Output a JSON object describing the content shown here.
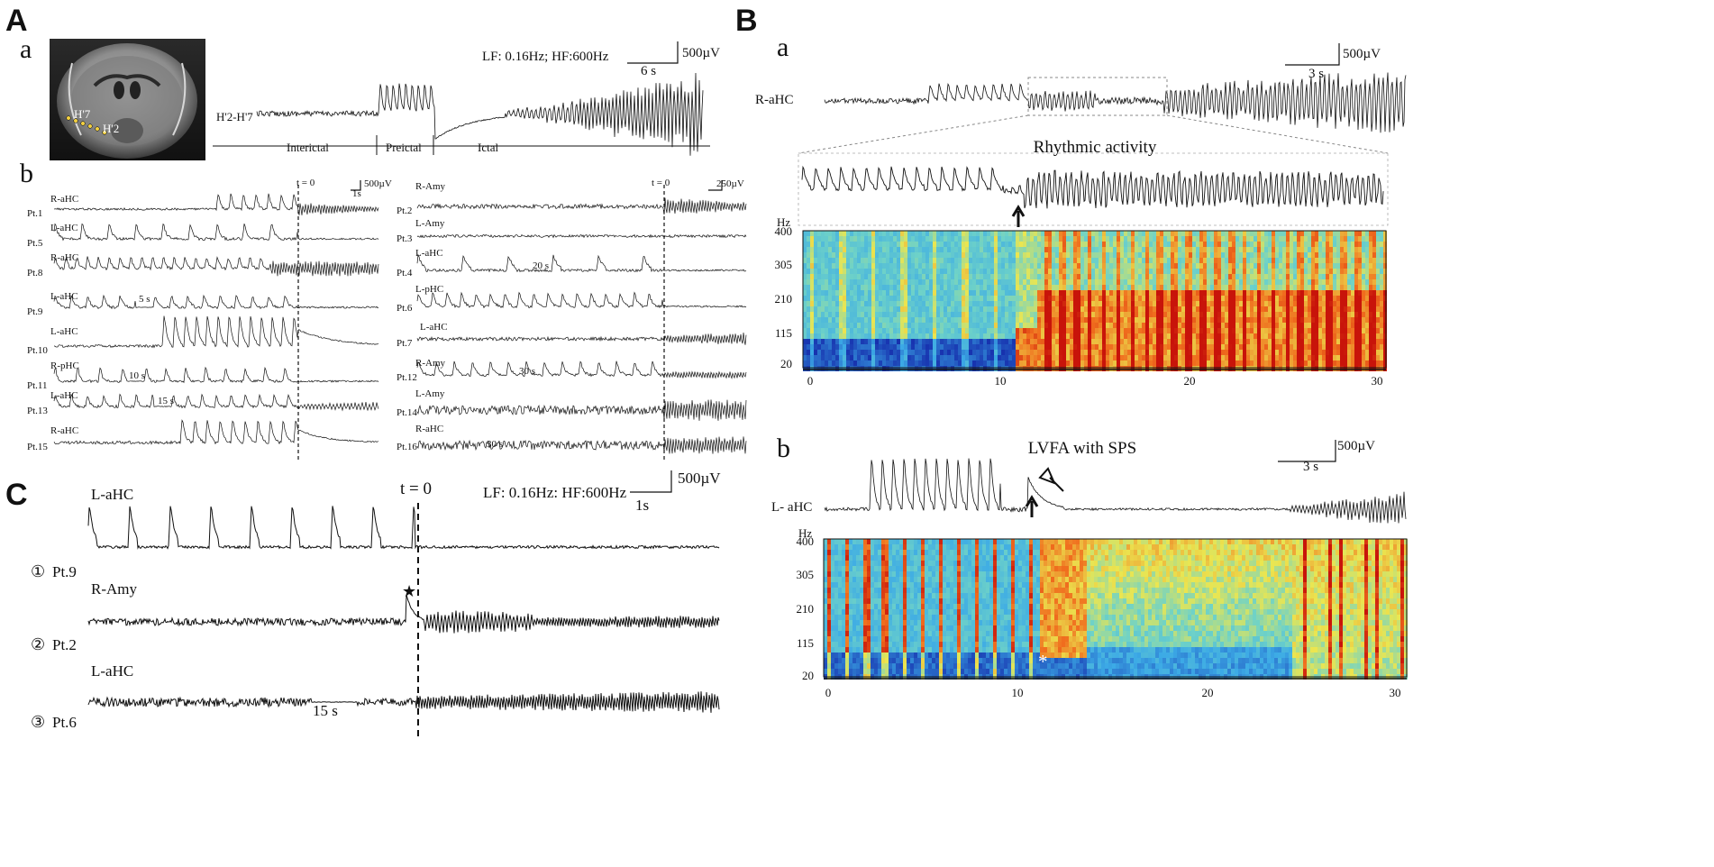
{
  "panels": {
    "A": "A",
    "B": "B",
    "C": "C"
  },
  "subpanels": {
    "Aa": "a",
    "Ab": "b",
    "Ba": "a",
    "Bb": "b"
  },
  "mri": {
    "contacts": [
      "H'7",
      "H'2"
    ]
  },
  "Aa": {
    "filter": "LF: 0.16Hz; HF:600Hz",
    "scale_v": "500µV",
    "scale_t": "6 s",
    "channel": "H'2-H'7",
    "phases": [
      "Interictal",
      "Preictal",
      "Ictal"
    ]
  },
  "Ab": {
    "t0": "t = 0",
    "scale_left_v": "500µV",
    "scale_left_t": "1s",
    "scale_right_v": "250µV",
    "traces_left": [
      {
        "patient": "Pt.1",
        "channel": "R-aHC",
        "gap": ""
      },
      {
        "patient": "Pt.5",
        "channel": "L-aHC",
        "gap": ""
      },
      {
        "patient": "Pt.8",
        "channel": "R-aHC",
        "gap": ""
      },
      {
        "patient": "Pt.9",
        "channel": "L-aHC",
        "gap": "5 s"
      },
      {
        "patient": "Pt.10",
        "channel": "L-aHC",
        "gap": ""
      },
      {
        "patient": "Pt.11",
        "channel": "R-pHC",
        "gap": "10 s"
      },
      {
        "patient": "Pt.13",
        "channel": "L-aHC",
        "gap": "15 s"
      },
      {
        "patient": "Pt.15",
        "channel": "R-aHC",
        "gap": ""
      }
    ],
    "traces_right": [
      {
        "patient": "Pt.2",
        "channel": "R-Amy",
        "gap": ""
      },
      {
        "patient": "Pt.3",
        "channel": "L-Amy",
        "gap": ""
      },
      {
        "patient": "Pt.4",
        "channel": "L-aHC",
        "gap": "20 s"
      },
      {
        "patient": "Pt.6",
        "channel": "L-pHC",
        "gap": ""
      },
      {
        "patient": "Pt.7",
        "channel": "L-aHC",
        "gap": ""
      },
      {
        "patient": "Pt.12",
        "channel": "R-Amy",
        "gap": "30 s"
      },
      {
        "patient": "Pt.14",
        "channel": "L-Amy",
        "gap": ""
      },
      {
        "patient": "Pt.16",
        "channel": "R-aHC",
        "gap": "30 s"
      }
    ]
  },
  "C": {
    "t0": "t = 0",
    "filter": "LF: 0.16Hz: HF:600Hz",
    "scale_v": "500µV",
    "scale_t": "1s",
    "traces": [
      {
        "num": "①",
        "patient": "Pt.9",
        "channel": "L-aHC",
        "gap": ""
      },
      {
        "num": "②",
        "patient": "Pt.2",
        "channel": "R-Amy",
        "gap": ""
      },
      {
        "num": "③",
        "patient": "Pt.6",
        "channel": "L-aHC",
        "gap": "15 s"
      }
    ],
    "star": "★"
  },
  "Ba": {
    "channel": "R-aHC",
    "scale_v": "500µV",
    "scale_t": "3 s",
    "zoom_title": "Rhythmic activity",
    "hz_unit": "Hz",
    "y_ticks": [
      "400",
      "305",
      "210",
      "115",
      "20"
    ],
    "x_ticks": [
      "0",
      "10",
      "20",
      "30"
    ]
  },
  "Bb": {
    "title": "LVFA with SPS",
    "channel": "L- aHC",
    "scale_v": "500µV",
    "scale_t": "3 s",
    "hz_unit": "Hz",
    "y_ticks": [
      "400",
      "305",
      "210",
      "115",
      "20"
    ],
    "x_ticks": [
      "0",
      "10",
      "20",
      "30"
    ],
    "asterisk": "*"
  },
  "colors": {
    "trace": "#111111",
    "spec_low": "#1a3fb8",
    "spec_mid": "#55d0d8",
    "spec_high": "#d42a10"
  }
}
